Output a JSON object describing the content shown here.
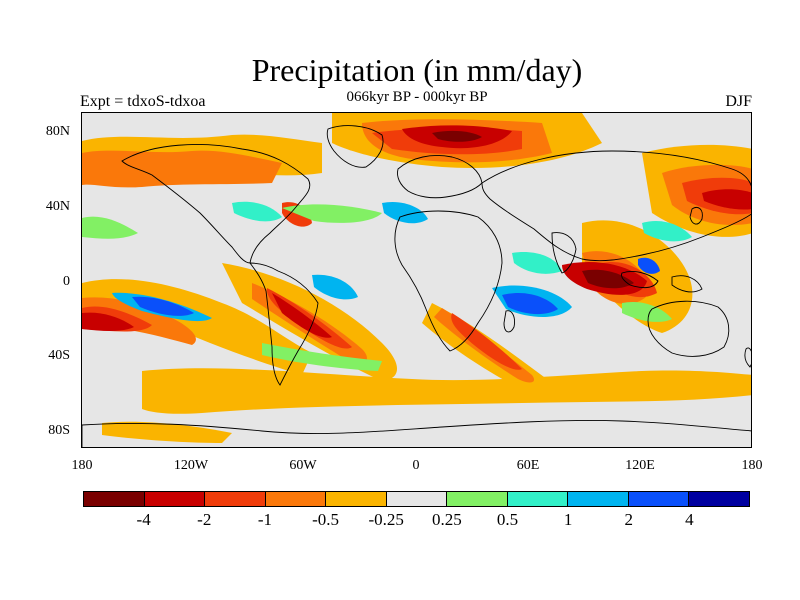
{
  "title": "Precipitation (in mm/day)",
  "subtitle": "066kyr BP - 000kyr BP",
  "left_label": "Expt = tdxoS-tdxoa",
  "right_label": "DJF",
  "lat_labels": [
    "80N",
    "40N",
    "0",
    "40S",
    "80S"
  ],
  "lon_labels": [
    "180",
    "120W",
    "60W",
    "0",
    "60E",
    "120E",
    "180"
  ],
  "colorbar": {
    "colors": [
      "#7a0000",
      "#c80000",
      "#f03c0a",
      "#fa780a",
      "#fab400",
      "#e6e6e6",
      "#82f064",
      "#32f0c8",
      "#00b4f0",
      "#0a50fa",
      "#0000a0"
    ],
    "labels": [
      "-4",
      "-2",
      "-1",
      "-0.5",
      "-0.25",
      "0.25",
      "0.5",
      "1",
      "2",
      "4"
    ]
  }
}
